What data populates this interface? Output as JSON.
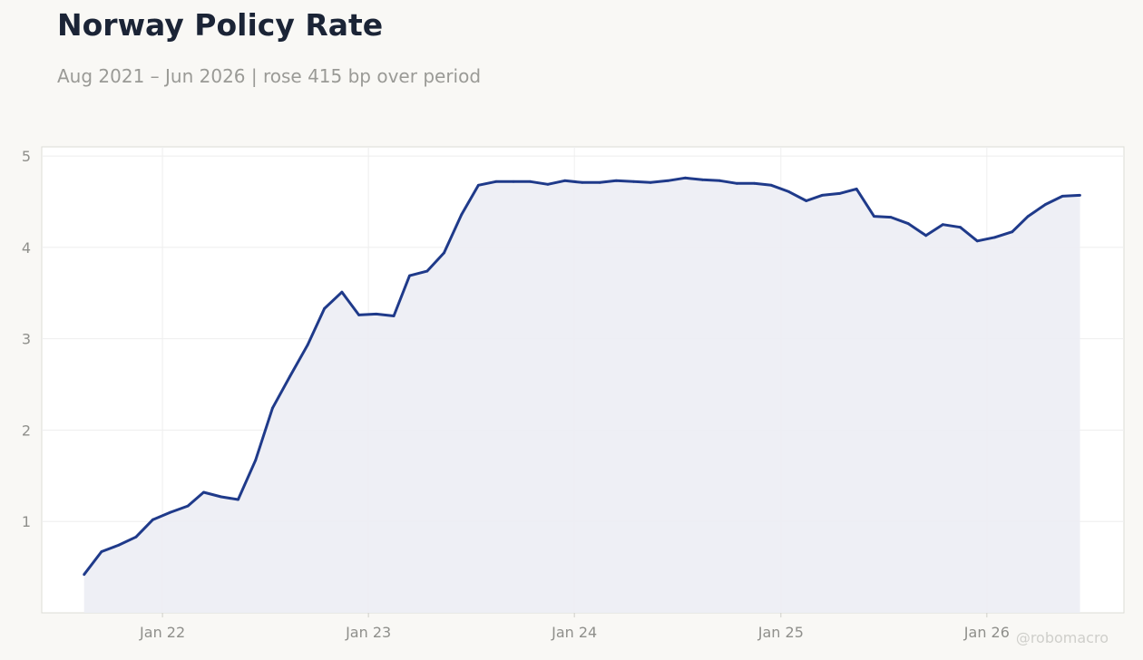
{
  "header": {
    "title": "Norway Policy Rate",
    "subtitle": "Aug 2021 – Jun 2026 | rose 415 bp over period"
  },
  "watermark": "@robomacro",
  "colors": {
    "line": "#1f3a8a",
    "fill": "#ecedf4",
    "background": "#f9f8f5",
    "plot_background": "#ffffff",
    "grid": "#eeeeee"
  },
  "chart_data": {
    "type": "area",
    "title": "Norway Policy Rate",
    "subtitle": "Aug 2021 – Jun 2026 | rose 415 bp over period",
    "xlabel": "",
    "ylabel": "",
    "xlim": [
      "2021-06-01",
      "2026-09-01"
    ],
    "ylim": [
      0,
      5.1
    ],
    "grid": true,
    "legend": "none",
    "x_ticks": [
      {
        "date": "2022-01-01",
        "label": "Jan 22"
      },
      {
        "date": "2023-01-01",
        "label": "Jan 23"
      },
      {
        "date": "2024-01-01",
        "label": "Jan 24"
      },
      {
        "date": "2025-01-01",
        "label": "Jan 25"
      },
      {
        "date": "2026-01-01",
        "label": "Jan 26"
      }
    ],
    "y_ticks": [
      1,
      2,
      3,
      4,
      5
    ],
    "series": [
      {
        "dates": [
          "2021-08",
          "2021-09",
          "2021-10",
          "2021-11",
          "2021-12",
          "2022-01",
          "2022-02",
          "2022-03",
          "2022-04",
          "2022-05",
          "2022-06",
          "2022-07",
          "2022-08",
          "2022-09",
          "2022-10",
          "2022-11",
          "2022-12",
          "2023-01",
          "2023-02",
          "2023-03",
          "2023-04",
          "2023-05",
          "2023-06",
          "2023-07",
          "2023-08",
          "2023-09",
          "2023-10",
          "2023-11",
          "2023-12",
          "2024-01",
          "2024-02",
          "2024-03",
          "2024-04",
          "2024-05",
          "2024-06",
          "2024-07",
          "2024-08",
          "2024-09",
          "2024-10",
          "2024-11",
          "2024-12",
          "2025-01",
          "2025-02",
          "2025-03",
          "2025-04",
          "2025-05",
          "2025-06",
          "2025-07",
          "2025-08",
          "2025-09",
          "2025-10",
          "2025-11",
          "2025-12",
          "2026-01",
          "2026-02",
          "2026-03",
          "2026-04",
          "2026-05",
          "2026-06"
        ],
        "values": [
          0.42,
          0.67,
          0.74,
          0.83,
          1.02,
          1.1,
          1.17,
          1.32,
          1.27,
          1.24,
          1.67,
          2.24,
          2.59,
          2.93,
          3.33,
          3.51,
          3.26,
          3.27,
          3.25,
          3.69,
          3.74,
          3.94,
          4.36,
          4.68,
          4.72,
          4.72,
          4.72,
          4.69,
          4.73,
          4.71,
          4.71,
          4.73,
          4.72,
          4.71,
          4.73,
          4.76,
          4.74,
          4.73,
          4.7,
          4.7,
          4.68,
          4.61,
          4.51,
          4.57,
          4.59,
          4.64,
          4.34,
          4.33,
          4.26,
          4.13,
          4.25,
          4.22,
          4.07,
          4.11,
          4.17,
          4.34,
          4.47,
          4.56,
          4.57
        ]
      }
    ]
  }
}
